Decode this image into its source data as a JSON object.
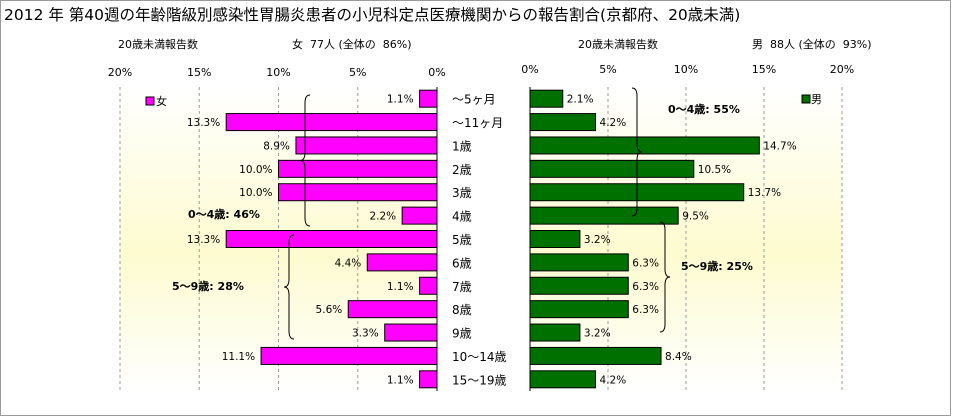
{
  "title": "2012 年 第40週の年齢階級別感染性胃腸炎患者の小児科定点医療機関からの報告割合(京都府、20歳未満)",
  "chart_data": [
    {
      "type": "bar",
      "orientation": "horizontal",
      "direction": "right-to-left",
      "header_left": "20歳未満報告数",
      "header_right": "女  77人 (全体の  86%)",
      "categories": [
        "～5ヶ月",
        "～11ヶ月",
        "1歳",
        "2歳",
        "3歳",
        "4歳",
        "5歳",
        "6歳",
        "7歳",
        "8歳",
        "9歳",
        "10～14歳",
        "15～19歳"
      ],
      "series": [
        {
          "name": "女",
          "color": "#ff00ff",
          "values": [
            1.1,
            13.3,
            8.9,
            10.0,
            10.0,
            2.2,
            13.3,
            4.4,
            1.1,
            5.6,
            3.3,
            11.1,
            1.1
          ]
        }
      ],
      "data_labels": [
        "1.1%",
        "13.3%",
        "8.9%",
        "10.0%",
        "10.0%",
        "2.2%",
        "13.3%",
        "4.4%",
        "1.1%",
        "5.6%",
        "3.3%",
        "11.1%",
        "1.1%"
      ],
      "xlim": [
        0,
        20
      ],
      "xticks": [
        "20%",
        "15%",
        "10%",
        "5%",
        "0%"
      ],
      "legend": "top-left",
      "annotations": [
        "0～4歳: 46%",
        "5～9歳: 28%"
      ]
    },
    {
      "type": "bar",
      "orientation": "horizontal",
      "direction": "left-to-right",
      "header_left": "20歳未満報告数",
      "header_right": "男  88人 (全体の  93%)",
      "categories": [
        "～5ヶ月",
        "～11ヶ月",
        "1歳",
        "2歳",
        "3歳",
        "4歳",
        "5歳",
        "6歳",
        "7歳",
        "8歳",
        "9歳",
        "10～14歳",
        "15～19歳"
      ],
      "series": [
        {
          "name": "男",
          "color": "#007000",
          "values": [
            2.1,
            4.2,
            14.7,
            10.5,
            13.7,
            9.5,
            3.2,
            6.3,
            6.3,
            6.3,
            3.2,
            8.4,
            4.2
          ]
        }
      ],
      "data_labels": [
        "2.1%",
        "4.2%",
        "14.7%",
        "10.5%",
        "13.7%",
        "9.5%",
        "3.2%",
        "6.3%",
        "6.3%",
        "6.3%",
        "3.2%",
        "8.4%",
        "4.2%"
      ],
      "xlim": [
        0,
        20
      ],
      "xticks": [
        "0%",
        "5%",
        "10%",
        "15%",
        "20%"
      ],
      "legend": "top-right",
      "annotations": [
        "0～4歳: 55%",
        "5～9歳: 25%"
      ]
    }
  ]
}
